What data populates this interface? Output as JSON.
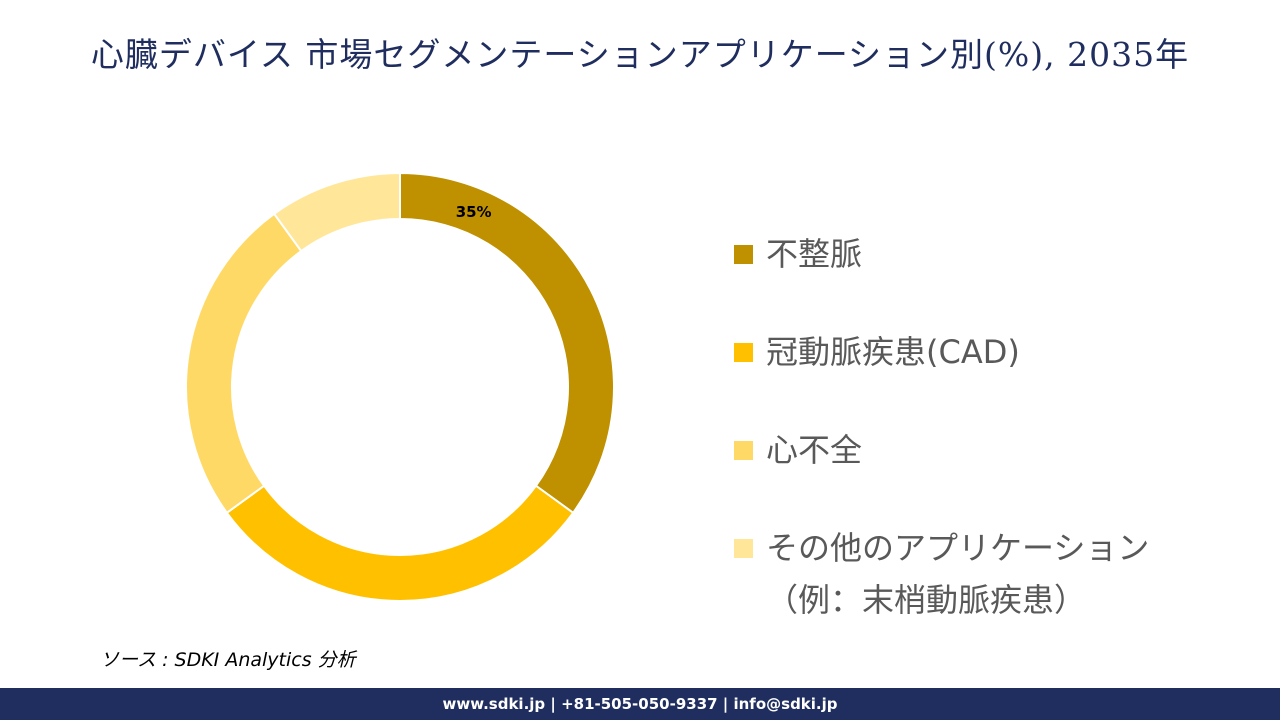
{
  "title": "心臓デバイス 市場セグメンテーションアプリケーション別(%), 2035年",
  "chart_data": {
    "type": "pie",
    "variant": "donut",
    "title": "心臓デバイス 市場セグメンテーションアプリケーション別(%), 2035年",
    "categories": [
      "不整脈",
      "冠動脈疾患(CAD)",
      "心不全",
      "その他のアプリケーション（例：末梢動脈疾患）"
    ],
    "values": [
      35,
      30,
      25,
      10
    ],
    "colors": [
      "#bf9000",
      "#ffc000",
      "#ffd966",
      "#ffe699"
    ],
    "data_labels": [
      "35%",
      "",
      "",
      ""
    ],
    "legend_position": "right"
  },
  "source": "ソース : SDKI Analytics 分析",
  "footer": "www.sdki.jp | +81-505-050-9337 | info@sdki.jp"
}
